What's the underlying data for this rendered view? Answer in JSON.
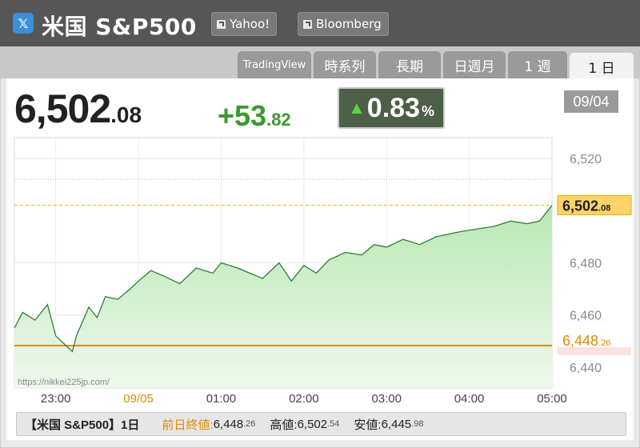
{
  "header": {
    "logo_icon": "x-icon",
    "logo_glyph": "𝕏",
    "title": "米国 S&P500",
    "links": [
      {
        "label": "Yahoo!",
        "icon": "external-link-icon"
      },
      {
        "label": "Bloomberg",
        "icon": "external-link-icon"
      }
    ]
  },
  "tabs": [
    {
      "label": "TradingView",
      "active": false
    },
    {
      "label": "時系列",
      "active": false
    },
    {
      "label": "長期",
      "active": false
    },
    {
      "label": "日週月",
      "active": false
    },
    {
      "label": "1 週",
      "active": false
    },
    {
      "label": "1 日",
      "active": true
    }
  ],
  "quote": {
    "price_int": "6,502",
    "price_dec": ".08",
    "change_int": "+53",
    "change_dec": ".82",
    "pct_arrow": "▲",
    "pct_value": "0.83",
    "pct_unit": "%",
    "date": "09/04"
  },
  "chart_data": {
    "type": "area",
    "ylim": [
      6432,
      6528
    ],
    "xlim": [
      22.5,
      29.0
    ],
    "x_ticks": [
      {
        "x": 23,
        "label": "23:00"
      },
      {
        "x": 24,
        "label": "09/05",
        "highlight": true
      },
      {
        "x": 25,
        "label": "01:00"
      },
      {
        "x": 26,
        "label": "02:00"
      },
      {
        "x": 27,
        "label": "03:00"
      },
      {
        "x": 28,
        "label": "04:00"
      },
      {
        "x": 29,
        "label": "05:00"
      }
    ],
    "y_ticks": [
      {
        "y": 6520,
        "label": "6,520"
      },
      {
        "y": 6480,
        "label": "6,480"
      },
      {
        "y": 6460,
        "label": "6,460"
      },
      {
        "y": 6440,
        "label": "6,440"
      }
    ],
    "last": {
      "value": 6502.08,
      "label_int": "6,502",
      "label_dec": ".08"
    },
    "prev_close": {
      "value": 6448.26,
      "label_int": "6,448",
      "label_dec": ".26"
    },
    "dotted_line": 6512,
    "colors": {
      "line": "#2e7d32",
      "fill_top": "#b9e7b4",
      "fill_bottom": "#eef9ec",
      "prev_close": "#e08a00",
      "last_line": "#f0b400",
      "last_badge": "#ffd36b"
    },
    "x": [
      22.5,
      22.6,
      22.75,
      22.9,
      23.0,
      23.1,
      23.2,
      23.25,
      23.4,
      23.5,
      23.6,
      23.75,
      23.9,
      24.0,
      24.15,
      24.3,
      24.5,
      24.7,
      24.9,
      25.0,
      25.2,
      25.35,
      25.5,
      25.7,
      25.85,
      26.0,
      26.15,
      26.3,
      26.5,
      26.7,
      26.85,
      27.0,
      27.2,
      27.4,
      27.6,
      27.75,
      27.9,
      28.1,
      28.3,
      28.5,
      28.7,
      28.85,
      28.95,
      29.0
    ],
    "values": [
      6455,
      6461,
      6458,
      6464,
      6452,
      6449,
      6446,
      6452,
      6463,
      6459,
      6467,
      6466,
      6470,
      6473,
      6477,
      6475,
      6472,
      6478,
      6476,
      6480,
      6478,
      6476,
      6474,
      6480,
      6473,
      6479,
      6476,
      6481,
      6484,
      6483,
      6487,
      6486,
      6489,
      6487,
      6490,
      6491,
      6492,
      6493,
      6494,
      6496,
      6495,
      6496,
      6500,
      6502.08
    ]
  },
  "source_url": "https://nikkei225jp.com/",
  "footer": {
    "title": "【米国 S&P500】1日",
    "prev_label": "前日終値:",
    "prev_int": "6,448",
    "prev_dec": ".26",
    "high_label": "高値:",
    "high_int": "6,502",
    "high_dec": ".54",
    "low_label": "安値:",
    "low_int": "6,445",
    "low_dec": ".98"
  }
}
